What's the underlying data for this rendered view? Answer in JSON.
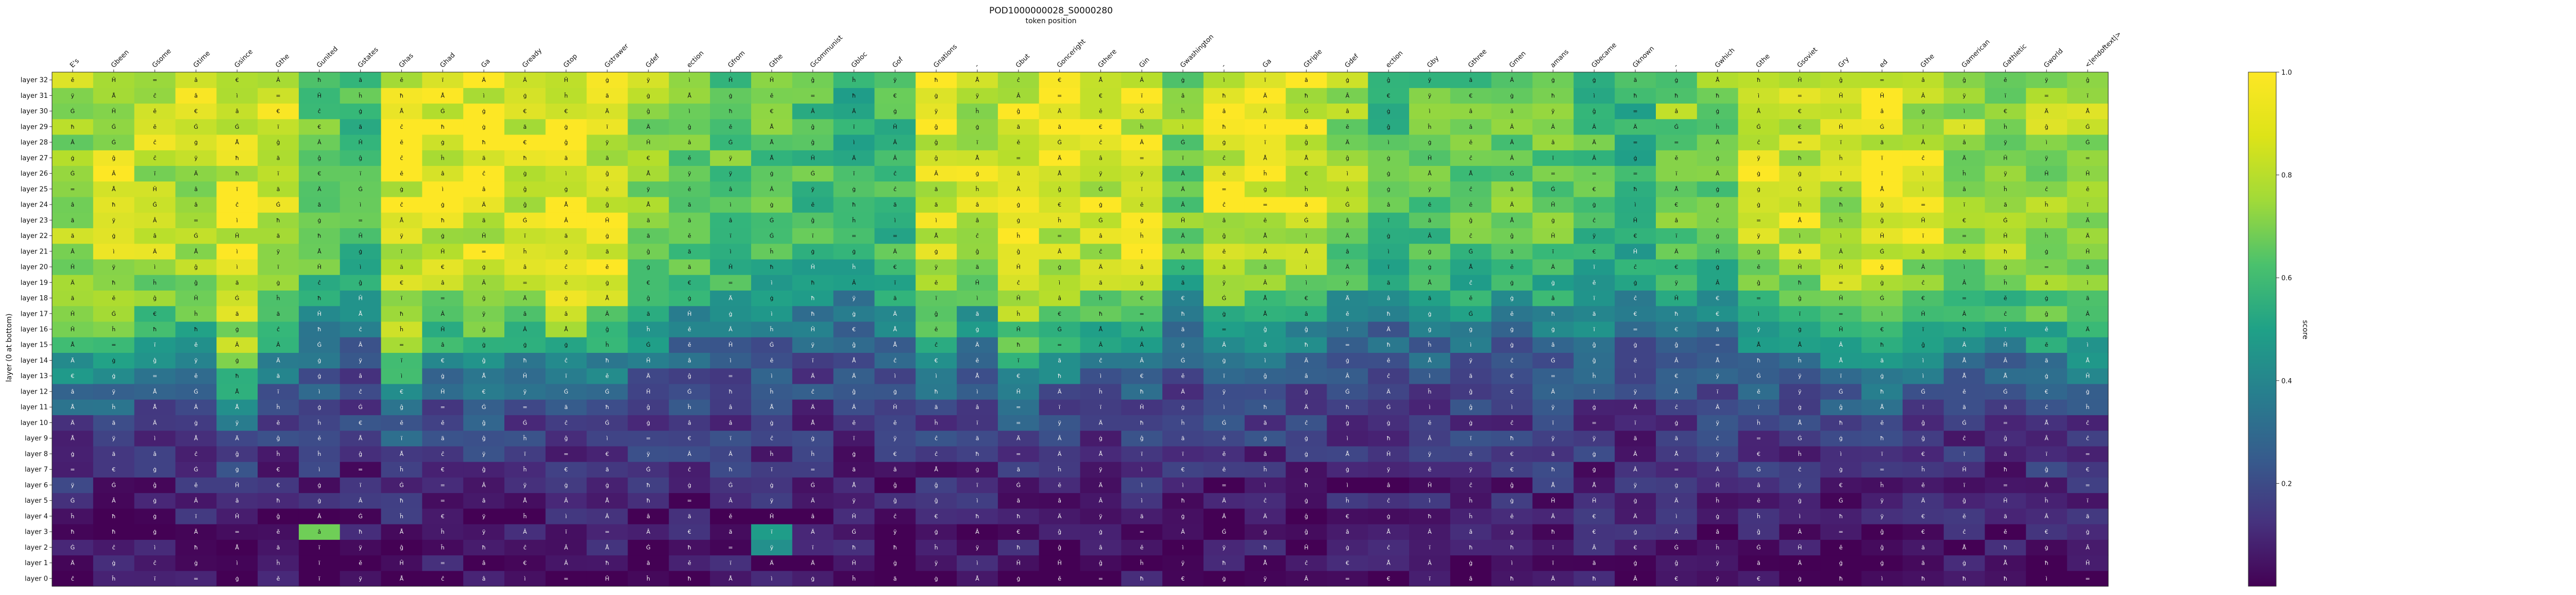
{
  "chart_data": {
    "type": "heatmap",
    "title": "POD1000000028_S0000280",
    "subtitle": "token position",
    "ylabel": "layer (0 at bottom)",
    "colorbar_label": "score",
    "colorbar_range": [
      0.0,
      1.0
    ],
    "colorbar_ticks": [
      "0.2",
      "0.4",
      "0.6",
      "0.8",
      "1.0"
    ],
    "colormap": "viridis",
    "x_tokens": [
      "E's",
      "Gbeen",
      "Gsome",
      "Gtime",
      "Gsince",
      "Gthe",
      "Gunited",
      "Gstates",
      "Ghas",
      "Ghad",
      "Ga",
      "Gready",
      "Gtop",
      "Gstrawer",
      "Gdef",
      "ection",
      "Gfrom",
      "Gthe",
      "Gcommunist",
      "Gbloc",
      "Gof",
      "Gnations",
      "-",
      "Gbut",
      "Gonceright",
      "Gthere",
      "Gin",
      "Gwashington",
      "-",
      "Ga",
      "Gtriple",
      "Gdef",
      "ection",
      "Gby",
      "Gthree",
      "Gmen",
      "amans",
      "Gbecame",
      "Gknown",
      "-",
      "Gwhich",
      "Gthe",
      "Gsoviet",
      "Gry",
      "ed",
      "Gthe",
      "Gamerican",
      "Gathletic",
      "Gworld",
      "<|endoftext|>"
    ],
    "layers": [
      "layer 0",
      "layer 1",
      "layer 2",
      "layer 3",
      "layer 4",
      "layer 5",
      "layer 6",
      "layer 7",
      "layer 8",
      "layer 9",
      "layer 10",
      "layer 11",
      "layer 12",
      "layer 13",
      "layer 14",
      "layer 15",
      "layer 16",
      "layer 17",
      "layer 18",
      "layer 19",
      "layer 20",
      "layer 21",
      "layer 22",
      "layer 23",
      "layer 24",
      "layer 25",
      "layer 26",
      "layer 27",
      "layer 28",
      "layer 29",
      "layer 30",
      "layer 31",
      "layer 32"
    ],
    "column_peak_scores": [
      0.85,
      0.9,
      0.88,
      0.9,
      0.95,
      0.9,
      0.75,
      0.7,
      0.95,
      0.95,
      0.95,
      0.95,
      0.95,
      0.95,
      0.85,
      0.8,
      0.75,
      0.75,
      0.7,
      0.65,
      0.7,
      0.95,
      0.9,
      0.95,
      0.95,
      0.95,
      0.95,
      0.8,
      0.95,
      0.95,
      0.95,
      0.85,
      0.7,
      0.75,
      0.75,
      0.8,
      0.75,
      0.7,
      0.65,
      0.8,
      0.8,
      0.9,
      0.9,
      0.9,
      0.95,
      0.9,
      0.85,
      0.85,
      0.85,
      0.85
    ],
    "column_onset_layers": [
      14,
      14,
      15,
      15,
      12,
      15,
      16,
      17,
      12,
      15,
      14,
      15,
      14,
      15,
      16,
      17,
      17,
      18,
      18,
      18,
      17,
      15,
      17,
      14,
      15,
      16,
      16,
      18,
      16,
      16,
      17,
      18,
      18,
      17,
      17,
      18,
      17,
      17,
      18,
      17,
      18,
      16,
      16,
      15,
      14,
      15,
      16,
      16,
      15,
      15
    ],
    "cell_labels": [
      "Ä",
      "Å",
      "â",
      "ã",
      "Ġ",
      "ì",
      "=",
      "Â",
      "ĉ",
      "ě",
      "ĥ",
      "ģ",
      "€",
      "ï",
      "ĝ",
      "ÿ",
      "ġ",
      "ħ",
      "Ĥ"
    ],
    "hot_cells": [
      {
        "token_index": 6,
        "layer": 3,
        "score": 0.78
      },
      {
        "token_index": 17,
        "layer": 3,
        "score": 0.55
      },
      {
        "token_index": 17,
        "layer": 2,
        "score": 0.5
      }
    ]
  }
}
